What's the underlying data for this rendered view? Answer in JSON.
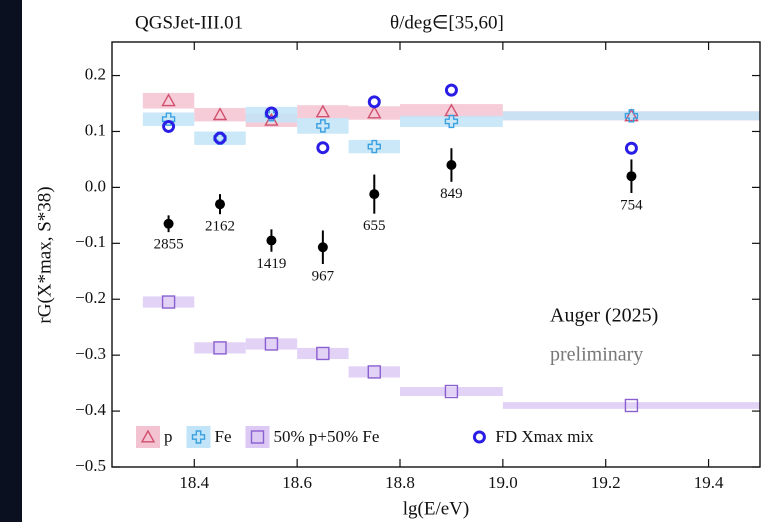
{
  "chart_data": {
    "type": "scatter",
    "header_left": "QGSJet-III.01",
    "header_right": "θ/deg∈[35,60]",
    "xlabel": "lg(E/eV)",
    "ylabel": "rG(X*max, S*38)",
    "annotations": [
      "Auger (2025)",
      "preliminary"
    ],
    "xlim": [
      18.24,
      19.5
    ],
    "ylim": [
      -0.5,
      0.26
    ],
    "xticks": [
      18.4,
      18.6,
      18.8,
      19.0,
      19.2,
      19.4
    ],
    "yticks": [
      -0.5,
      -0.4,
      -0.3,
      -0.2,
      -0.1,
      0.0,
      0.1,
      0.2
    ],
    "bins": [
      18.3,
      18.4,
      18.5,
      18.6,
      18.7,
      18.8,
      19.0,
      19.5
    ],
    "series": [
      {
        "name": "p",
        "marker": "triangle",
        "color": "#d0506e",
        "band_color": "#f3c3d1",
        "x": [
          18.35,
          18.45,
          18.55,
          18.65,
          18.75,
          18.9,
          19.25
        ],
        "values": [
          0.155,
          0.13,
          0.12,
          0.135,
          0.133,
          0.137,
          0.128
        ],
        "errors": [
          0.014,
          0.012,
          0.012,
          0.012,
          0.012,
          0.012,
          0.008
        ]
      },
      {
        "name": "Fe",
        "marker": "cross",
        "color": "#3aa0e0",
        "band_color": "#c2e4f8",
        "x": [
          18.35,
          18.45,
          18.55,
          18.65,
          18.75,
          18.9,
          19.25
        ],
        "values": [
          0.122,
          0.088,
          0.13,
          0.11,
          0.073,
          0.118,
          0.128
        ],
        "errors": [
          0.012,
          0.012,
          0.014,
          0.014,
          0.012,
          0.01,
          0.008
        ]
      },
      {
        "name": "50% p+50% Fe",
        "marker": "square",
        "color": "#8a5fd0",
        "band_color": "#dccaf4",
        "x": [
          18.35,
          18.45,
          18.55,
          18.65,
          18.75,
          18.9,
          19.25
        ],
        "values": [
          -0.205,
          -0.287,
          -0.28,
          -0.297,
          -0.33,
          -0.365,
          -0.39
        ],
        "errors": [
          0.01,
          0.01,
          0.01,
          0.01,
          0.01,
          0.008,
          0.006
        ]
      },
      {
        "name": "FD Xmax mix",
        "marker": "circle",
        "color": "#2a1ee6",
        "x": [
          18.35,
          18.45,
          18.55,
          18.65,
          18.75,
          18.9,
          19.25
        ],
        "values": [
          0.109,
          0.088,
          0.133,
          0.071,
          0.153,
          0.174,
          0.07
        ]
      },
      {
        "marker": "dot",
        "color": "#000000",
        "x": [
          18.35,
          18.45,
          18.55,
          18.65,
          18.75,
          18.9,
          19.25
        ],
        "values": [
          -0.065,
          -0.03,
          -0.095,
          -0.107,
          -0.012,
          0.04,
          0.02
        ],
        "errors": [
          0.015,
          0.018,
          0.02,
          0.03,
          0.035,
          0.03,
          0.03
        ],
        "counts": [
          2855,
          2162,
          1419,
          967,
          655,
          849,
          754
        ]
      }
    ]
  }
}
